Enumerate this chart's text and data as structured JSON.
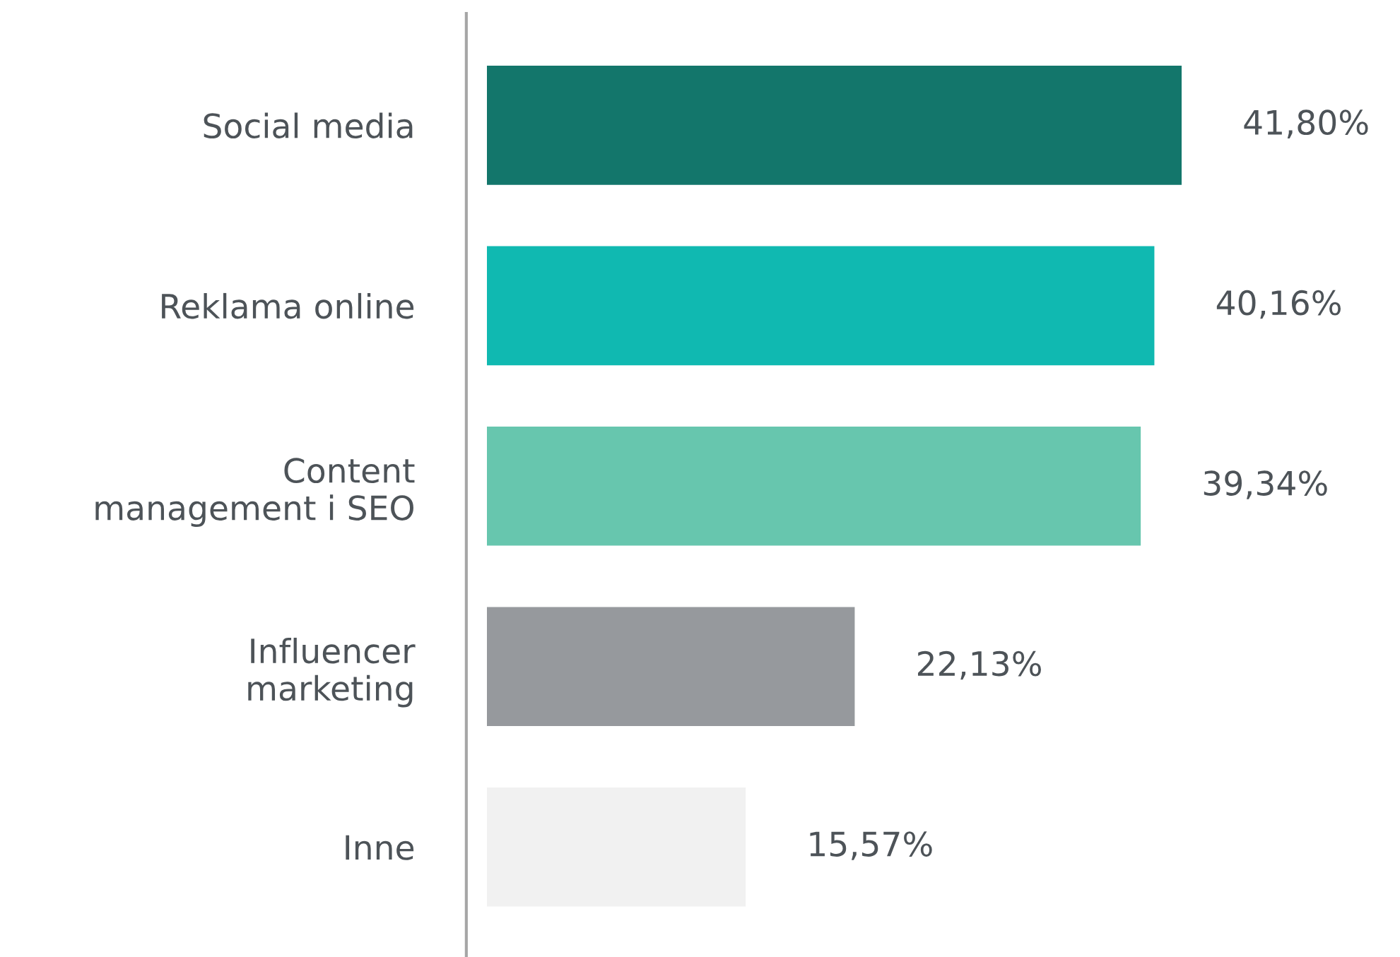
{
  "chart_data": {
    "type": "bar",
    "orientation": "horizontal",
    "categories": [
      "Social media",
      "Reklama online",
      "Content\nmanagement i SEO",
      "Influencer\nmarketing",
      "Inne"
    ],
    "values": [
      41.8,
      40.16,
      39.34,
      22.13,
      15.57
    ],
    "colors": [
      "#13766b",
      "#10b9b1",
      "#67c6ae",
      "#96999d",
      "#f1f1f1"
    ],
    "value_labels": [
      "41,80%",
      "40,16%",
      "39,34%",
      "22,13%",
      "15,57%"
    ],
    "grid": false,
    "legend": false
  }
}
